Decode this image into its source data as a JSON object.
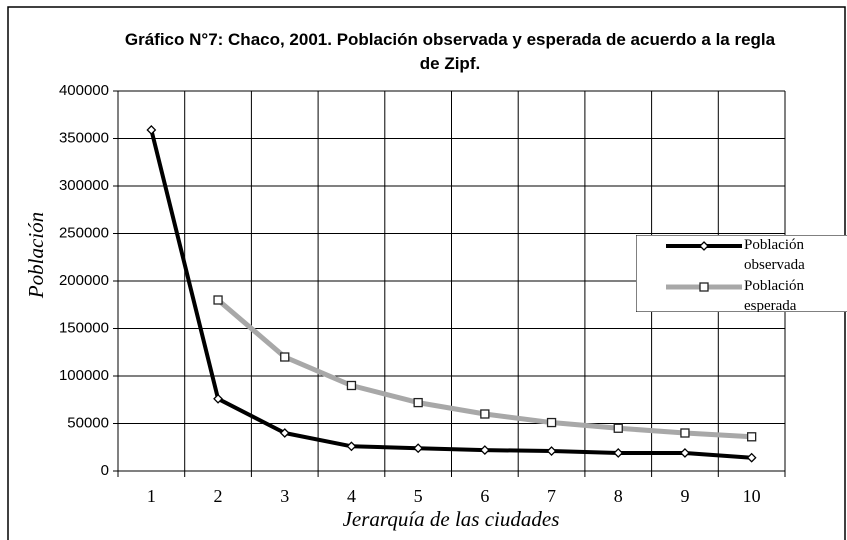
{
  "chart_data": {
    "type": "line",
    "title": "Gráfico N°7: Chaco, 2001. Población observada y esperada de acuerdo a la regla de Zipf.",
    "x_label": "Jerarquía de las ciudades",
    "y_label": "Población",
    "categories": [
      "1",
      "2",
      "3",
      "4",
      "5",
      "6",
      "7",
      "8",
      "9",
      "10"
    ],
    "series": [
      {
        "name": "Población observada",
        "color": "#000000",
        "values": [
          359000,
          76000,
          40000,
          26000,
          24000,
          22000,
          21000,
          19000,
          19000,
          14000
        ]
      },
      {
        "name": "Población esperada",
        "color": "#a8a8a8",
        "values": [
          null,
          180000,
          120000,
          90000,
          72000,
          60000,
          51000,
          45000,
          40000,
          36000
        ]
      }
    ],
    "ylim": [
      0,
      400000
    ],
    "yticks": [
      0,
      50000,
      100000,
      150000,
      200000,
      250000,
      300000,
      350000,
      400000
    ],
    "grid": true,
    "legend": "right"
  }
}
